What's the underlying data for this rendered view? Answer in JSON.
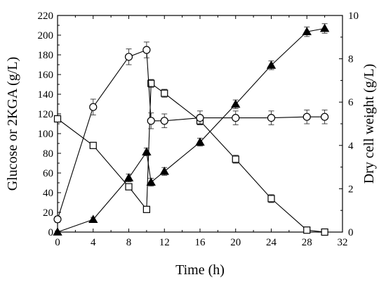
{
  "chart_data": {
    "type": "line",
    "xlabel": "Time (h)",
    "ylabel_left": "Glucose or 2KGA (g/L)",
    "ylabel_right": "Dry cell weight (g/L)",
    "xlim": [
      0,
      32
    ],
    "ylim_left": [
      0,
      220
    ],
    "ylim_right": [
      0,
      10
    ],
    "x_ticks": [
      0,
      4,
      8,
      12,
      16,
      20,
      24,
      28,
      32
    ],
    "y_left_ticks": [
      0,
      20,
      40,
      60,
      80,
      100,
      120,
      140,
      160,
      180,
      200,
      220
    ],
    "y_right_ticks": [
      0,
      2,
      4,
      6,
      8,
      10
    ],
    "grid": false,
    "series": [
      {
        "marker": "open-square",
        "axis": "left",
        "x": [
          0,
          4,
          8,
          10,
          10.5,
          12,
          16,
          20,
          24,
          28,
          30
        ],
        "y": [
          115,
          88,
          46,
          23,
          151,
          141,
          113,
          74,
          34,
          2,
          0
        ],
        "err": [
          3,
          3,
          3,
          3,
          4,
          4,
          4,
          4,
          4,
          2,
          1
        ]
      },
      {
        "marker": "open-circle",
        "axis": "left",
        "x": [
          0,
          4,
          8,
          10,
          10.5,
          12,
          16,
          20,
          24,
          28,
          30
        ],
        "y": [
          13,
          127,
          178,
          185,
          113,
          113,
          116,
          116,
          116,
          117,
          117
        ],
        "err": [
          3,
          8,
          8,
          8,
          8,
          7,
          7,
          7,
          7,
          7,
          7
        ]
      },
      {
        "marker": "filled-triangle",
        "axis": "right",
        "x": [
          0,
          4,
          8,
          10,
          10.5,
          12,
          16,
          20,
          24,
          28,
          30
        ],
        "y": [
          0,
          0.58,
          2.5,
          3.7,
          2.3,
          2.8,
          4.15,
          5.9,
          7.7,
          9.25,
          9.4
        ],
        "err": [
          0.05,
          0.1,
          0.18,
          0.18,
          0.18,
          0.18,
          0.18,
          0.2,
          0.2,
          0.22,
          0.22
        ]
      }
    ]
  }
}
